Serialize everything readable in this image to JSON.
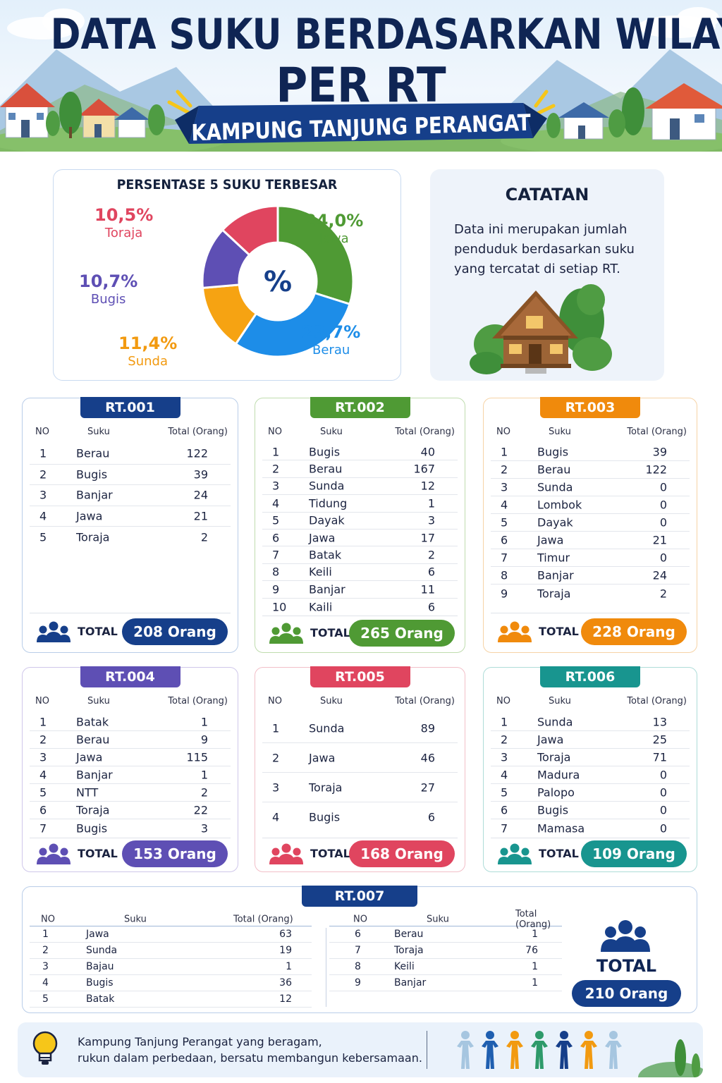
{
  "header": {
    "title_line1": "DATA SUKU BERDASARKAN WILAYAH",
    "title_line2": "PER RT",
    "ribbon": "KAMPUNG TANJUNG PERANGAT"
  },
  "pie": {
    "title": "PERSENTASE 5 SUKU TERBESAR",
    "center_symbol": "%"
  },
  "chart_data": {
    "type": "pie",
    "title": "PERSENTASE 5 SUKU TERBESAR",
    "slices": [
      {
        "label": "Jawa",
        "value": 24.0,
        "display": "24,0%",
        "color": "#4f9a34"
      },
      {
        "label": "Berau",
        "value": 23.7,
        "display": "23,7%",
        "color": "#1d8de8"
      },
      {
        "label": "Sunda",
        "value": 11.4,
        "display": "11,4%",
        "color": "#f6a312"
      },
      {
        "label": "Bugis",
        "value": 10.7,
        "display": "10,7%",
        "color": "#5e4fb4"
      },
      {
        "label": "Toraja",
        "value": 10.5,
        "display": "10,5%",
        "color": "#e0455f"
      }
    ]
  },
  "note": {
    "title": "CATATAN",
    "text": "Data ini merupakan jumlah penduduk berdasarkan suku yang tercatat di setiap RT."
  },
  "col_headers": {
    "no": "NO",
    "suku": "Suku",
    "total": "Total (Orang)"
  },
  "total_label": "TOTAL",
  "rts": [
    {
      "name": "RT.001",
      "color": "#163f8a",
      "border": "#b9cde8",
      "total": "208 Orang",
      "rows": [
        [
          "1",
          "Berau",
          "122"
        ],
        [
          "2",
          "Bugis",
          "39"
        ],
        [
          "3",
          "Banjar",
          "24"
        ],
        [
          "4",
          "Jawa",
          "21"
        ],
        [
          "5",
          "Toraja",
          "2"
        ]
      ]
    },
    {
      "name": "RT.002",
      "color": "#4f9a34",
      "border": "#bfdcae",
      "total": "265 Orang",
      "rows": [
        [
          "1",
          "Bugis",
          "40"
        ],
        [
          "2",
          "Berau",
          "167"
        ],
        [
          "3",
          "Sunda",
          "12"
        ],
        [
          "4",
          "Tidung",
          "1"
        ],
        [
          "5",
          "Dayak",
          "3"
        ],
        [
          "6",
          "Jawa",
          "17"
        ],
        [
          "7",
          "Batak",
          "2"
        ],
        [
          "8",
          "Keili",
          "6"
        ],
        [
          "9",
          "Banjar",
          "11"
        ],
        [
          "10",
          "Kaili",
          "6"
        ]
      ]
    },
    {
      "name": "RT.003",
      "color": "#f08a0c",
      "border": "#f6d3a6",
      "total": "228 Orang",
      "rows": [
        [
          "1",
          "Bugis",
          "39"
        ],
        [
          "2",
          "Berau",
          "122"
        ],
        [
          "3",
          "Sunda",
          "0"
        ],
        [
          "4",
          "Lombok",
          "0"
        ],
        [
          "5",
          "Dayak",
          "0"
        ],
        [
          "6",
          "Jawa",
          "21"
        ],
        [
          "7",
          "Timur",
          "0"
        ],
        [
          "8",
          "Banjar",
          "24"
        ],
        [
          "9",
          "Toraja",
          "2"
        ]
      ]
    },
    {
      "name": "RT.004",
      "color": "#5e4fb4",
      "border": "#cfc7ea",
      "total": "153 Orang",
      "rows": [
        [
          "1",
          "Batak",
          "1"
        ],
        [
          "2",
          "Berau",
          "9"
        ],
        [
          "3",
          "Jawa",
          "115"
        ],
        [
          "4",
          "Banjar",
          "1"
        ],
        [
          "5",
          "NTT",
          "2"
        ],
        [
          "6",
          "Toraja",
          "22"
        ],
        [
          "7",
          "Bugis",
          "3"
        ]
      ]
    },
    {
      "name": "RT.005",
      "color": "#e0455f",
      "border": "#f2bfc8",
      "total": "168 Orang",
      "rows": [
        [
          "1",
          "Sunda",
          "89"
        ],
        [
          "2",
          "Jawa",
          "46"
        ],
        [
          "3",
          "Toraja",
          "27"
        ],
        [
          "4",
          "Bugis",
          "6"
        ]
      ]
    },
    {
      "name": "RT.006",
      "color": "#18958f",
      "border": "#aedcd8",
      "total": "109 Orang",
      "rows": [
        [
          "1",
          "Sunda",
          "13"
        ],
        [
          "2",
          "Jawa",
          "25"
        ],
        [
          "3",
          "Toraja",
          "71"
        ],
        [
          "4",
          "Madura",
          "0"
        ],
        [
          "5",
          "Palopo",
          "0"
        ],
        [
          "6",
          "Bugis",
          "0"
        ],
        [
          "7",
          "Mamasa",
          "0"
        ]
      ]
    }
  ],
  "rt7": {
    "name": "RT.007",
    "total": "210 Orang",
    "left_rows": [
      [
        "1",
        "Jawa",
        "63"
      ],
      [
        "2",
        "Sunda",
        "19"
      ],
      [
        "3",
        "Bajau",
        "1"
      ],
      [
        "4",
        "Bugis",
        "36"
      ],
      [
        "5",
        "Batak",
        "12"
      ]
    ],
    "right_rows": [
      [
        "6",
        "Berau",
        "1"
      ],
      [
        "7",
        "Toraja",
        "76"
      ],
      [
        "8",
        "Keili",
        "1"
      ],
      [
        "9",
        "Banjar",
        "1"
      ]
    ]
  },
  "footer": {
    "line1": "Kampung Tanjung Perangat yang beragam,",
    "line2": "rukun dalam perbedaan, bersatu membangun kebersamaan."
  },
  "icons": {
    "people": "people-group-icon",
    "bulb": "lightbulb-icon",
    "house": "house-icon"
  }
}
